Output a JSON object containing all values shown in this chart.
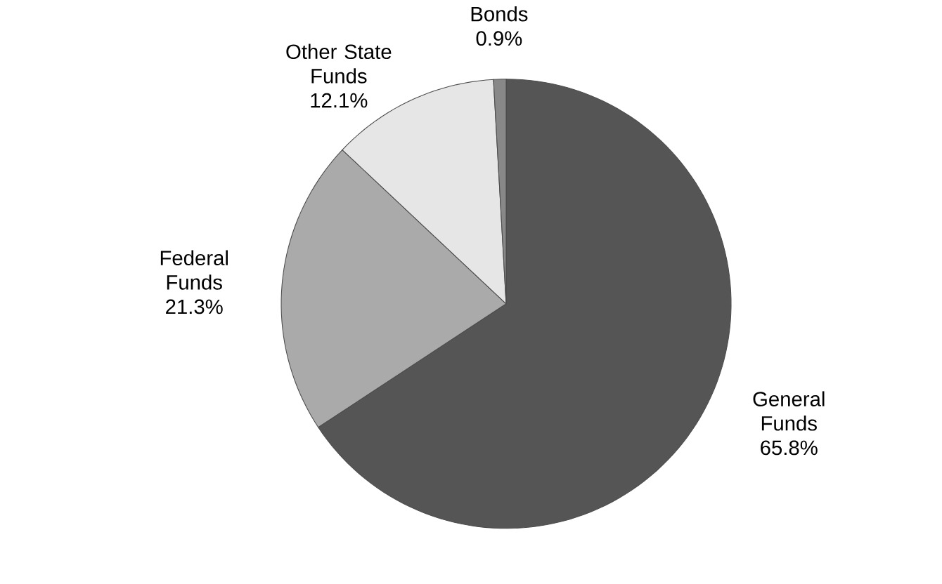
{
  "chart_data": {
    "type": "pie",
    "categories": [
      "General Funds",
      "Federal Funds",
      "Other State Funds",
      "Bonds"
    ],
    "values": [
      65.8,
      21.3,
      12.1,
      0.9
    ],
    "value_labels": [
      "65.8%",
      "21.3%",
      "12.1%",
      "0.9%"
    ],
    "colors": [
      "#555555",
      "#aaaaaa",
      "#e6e6e6",
      "#888888"
    ]
  }
}
